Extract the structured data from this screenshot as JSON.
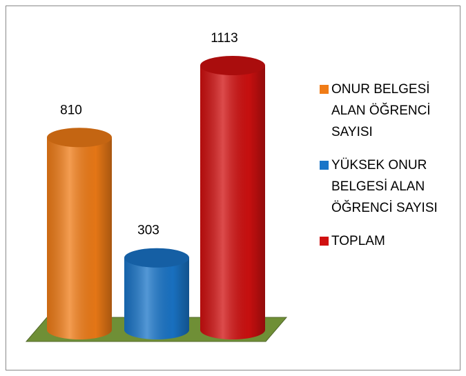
{
  "chart_data": {
    "type": "bar",
    "categories": [
      null
    ],
    "series": [
      {
        "name": "ONUR BELGESİ ALAN ÖĞRENCİ SAYISI",
        "color": "#f07c17",
        "values": [
          810
        ]
      },
      {
        "name": "YÜKSEK ONUR BELGESİ ALAN ÖĞRENCİ SAYISI",
        "color": "#1a75c8",
        "values": [
          303
        ]
      },
      {
        "name": "TOPLAM",
        "color": "#d01010",
        "values": [
          1113
        ]
      }
    ],
    "legend": "right"
  }
}
